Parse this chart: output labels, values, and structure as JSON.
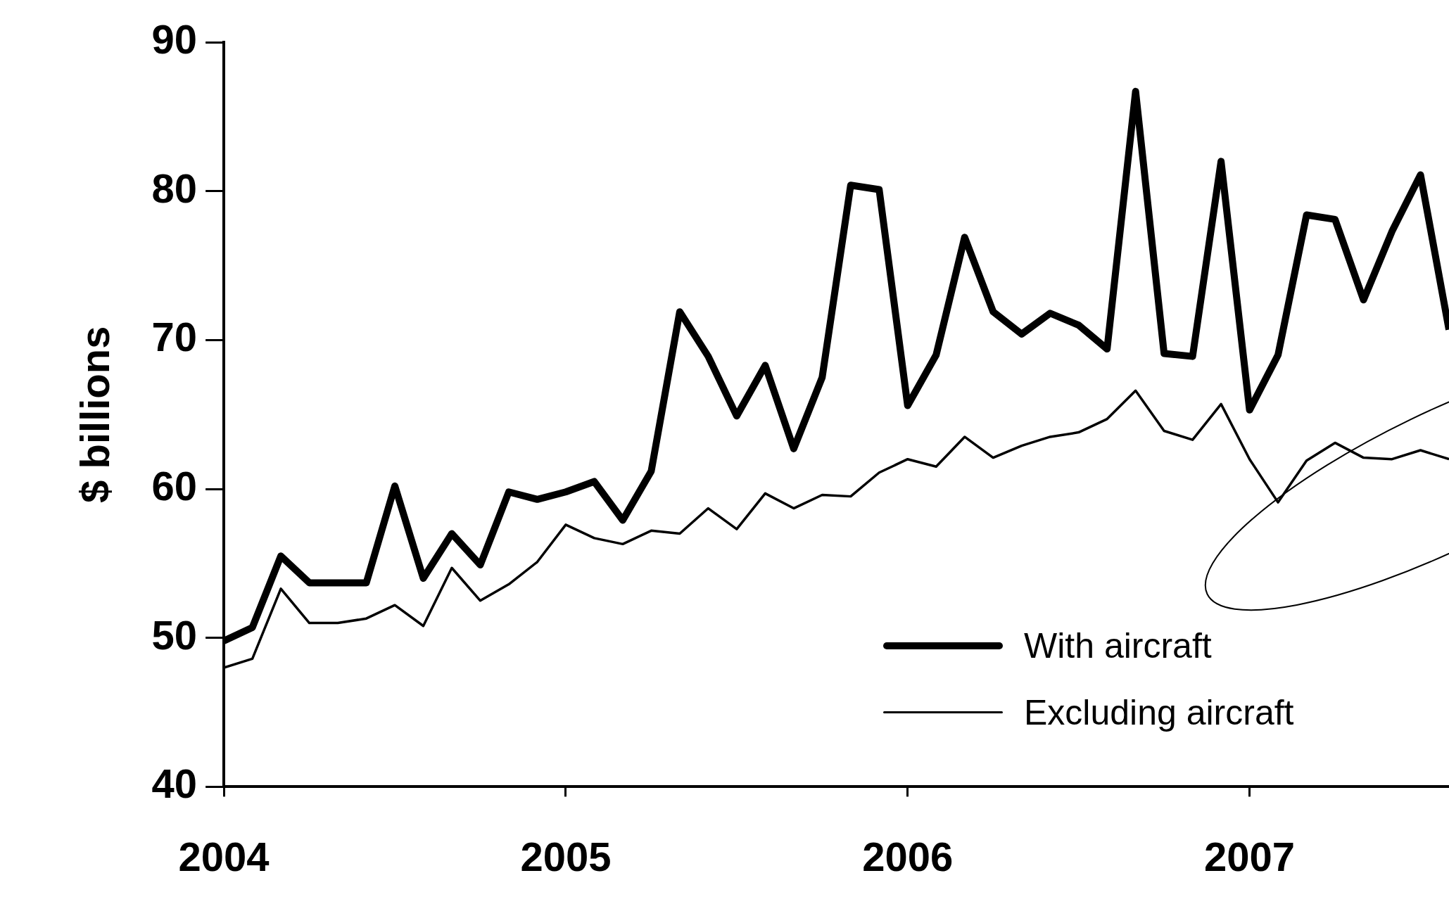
{
  "chart_data": {
    "type": "line",
    "ylabel": "$ billions",
    "x": [
      "2004-01",
      "2004-02",
      "2004-03",
      "2004-04",
      "2004-05",
      "2004-06",
      "2004-07",
      "2004-08",
      "2004-09",
      "2004-10",
      "2004-11",
      "2004-12",
      "2005-01",
      "2005-02",
      "2005-03",
      "2005-04",
      "2005-05",
      "2005-06",
      "2005-07",
      "2005-08",
      "2005-09",
      "2005-10",
      "2005-11",
      "2005-12",
      "2006-01",
      "2006-02",
      "2006-03",
      "2006-04",
      "2006-05",
      "2006-06",
      "2006-07",
      "2006-08",
      "2006-09",
      "2006-10",
      "2006-11",
      "2006-12",
      "2007-01",
      "2007-02",
      "2007-03",
      "2007-04",
      "2007-05",
      "2007-06",
      "2007-07",
      "2007-08"
    ],
    "series": [
      {
        "name": "With aircraft",
        "color": "#000000",
        "values": [
          49.8,
          50.7,
          55.5,
          53.7,
          53.7,
          53.7,
          60.2,
          54.0,
          57.0,
          54.9,
          59.8,
          59.3,
          59.8,
          60.5,
          57.9,
          61.2,
          71.9,
          68.9,
          64.9,
          68.3,
          62.7,
          67.5,
          80.4,
          80.1,
          65.6,
          69.0,
          76.9,
          71.9,
          70.4,
          71.8,
          71.0,
          69.4,
          86.7,
          69.1,
          68.9,
          82.0,
          65.3,
          69.0,
          78.4,
          78.1,
          72.7,
          77.3,
          81.1,
          70.7
        ]
      },
      {
        "name": "Excluding aircraft",
        "color": "#000000",
        "values": [
          48.0,
          48.6,
          53.3,
          51.0,
          51.0,
          51.3,
          52.2,
          50.8,
          54.7,
          52.5,
          53.6,
          55.1,
          57.6,
          56.7,
          56.3,
          57.2,
          57.0,
          58.7,
          57.3,
          59.7,
          58.7,
          59.6,
          59.5,
          61.1,
          62.0,
          61.5,
          63.5,
          62.1,
          62.9,
          63.5,
          63.8,
          64.7,
          66.6,
          63.9,
          63.3,
          65.7,
          62.0,
          59.1,
          61.9,
          63.1,
          62.1,
          62.0,
          62.6,
          62.0
        ]
      }
    ],
    "xlim": [
      "2004-01",
      "2007-08"
    ],
    "xticks": [
      {
        "value": "2004",
        "label": "2004"
      },
      {
        "value": "2005",
        "label": "2005"
      },
      {
        "value": "2006",
        "label": "2006"
      },
      {
        "value": "2007",
        "label": "2007"
      }
    ],
    "ylim": [
      40,
      90
    ],
    "yticks": [
      40,
      50,
      60,
      70,
      80,
      90
    ],
    "grid": false,
    "legend": "bottom right",
    "marker": "none",
    "line_style": "solid"
  }
}
